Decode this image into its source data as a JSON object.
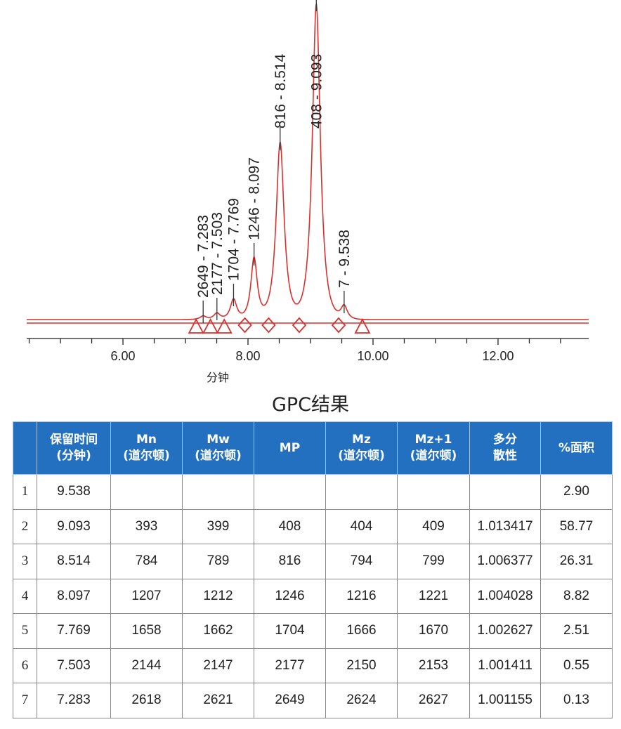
{
  "chart_data": {
    "type": "line",
    "xlabel": "分钟",
    "ylabel": "",
    "xlim": [
      4.46,
      13.45
    ],
    "x_tick_labels": [
      "6.00",
      "8.00",
      "10.00",
      "12.00"
    ],
    "x_ticks": [
      6,
      8,
      10,
      12
    ],
    "grid": false,
    "line_color": "#d9302c",
    "peaks": [
      {
        "label": "2649 - 7.283",
        "x": 7.283,
        "height": 5
      },
      {
        "label": "2177 - 7.503",
        "x": 7.503,
        "height": 9
      },
      {
        "label": "1704 - 7.769",
        "x": 7.769,
        "height": 29
      },
      {
        "label": "1246 - 8.097",
        "x": 8.097,
        "height": 87
      },
      {
        "label": "816 - 8.514",
        "x": 8.514,
        "height": 252
      },
      {
        "label": "408 - 9.093",
        "x": 9.093,
        "height": 449
      },
      {
        "label": "7 - 9.538",
        "x": 9.538,
        "height": 19
      }
    ],
    "triangle_markers": [
      7.17,
      7.4,
      7.62,
      9.83
    ],
    "diamond_markers": [
      7.95,
      8.33,
      8.82,
      9.45
    ]
  },
  "table": {
    "title": "GPC结果",
    "headers": [
      [
        "",
        ""
      ],
      [
        "保留时间",
        "(分钟)"
      ],
      [
        "Mn",
        "(道尔顿)"
      ],
      [
        "Mw",
        "(道尔顿)"
      ],
      [
        "MP",
        ""
      ],
      [
        "Mz",
        "(道尔顿)"
      ],
      [
        "Mz+1",
        "(道尔顿)"
      ],
      [
        "多分",
        "散性"
      ],
      [
        "%面积",
        ""
      ]
    ],
    "rows": [
      [
        "1",
        "9.538",
        "",
        "",
        "",
        "",
        "",
        "",
        "2.90"
      ],
      [
        "2",
        "9.093",
        "393",
        "399",
        "408",
        "404",
        "409",
        "1.013417",
        "58.77"
      ],
      [
        "3",
        "8.514",
        "784",
        "789",
        "816",
        "794",
        "799",
        "1.006377",
        "26.31"
      ],
      [
        "4",
        "8.097",
        "1207",
        "1212",
        "1246",
        "1216",
        "1221",
        "1.004028",
        "8.82"
      ],
      [
        "5",
        "7.769",
        "1658",
        "1662",
        "1704",
        "1666",
        "1670",
        "1.002627",
        "2.51"
      ],
      [
        "6",
        "7.503",
        "2144",
        "2147",
        "2177",
        "2150",
        "2153",
        "1.001411",
        "0.55"
      ],
      [
        "7",
        "7.283",
        "2618",
        "2621",
        "2649",
        "2624",
        "2627",
        "1.001155",
        "0.13"
      ]
    ],
    "header_color": "#2470c0"
  }
}
